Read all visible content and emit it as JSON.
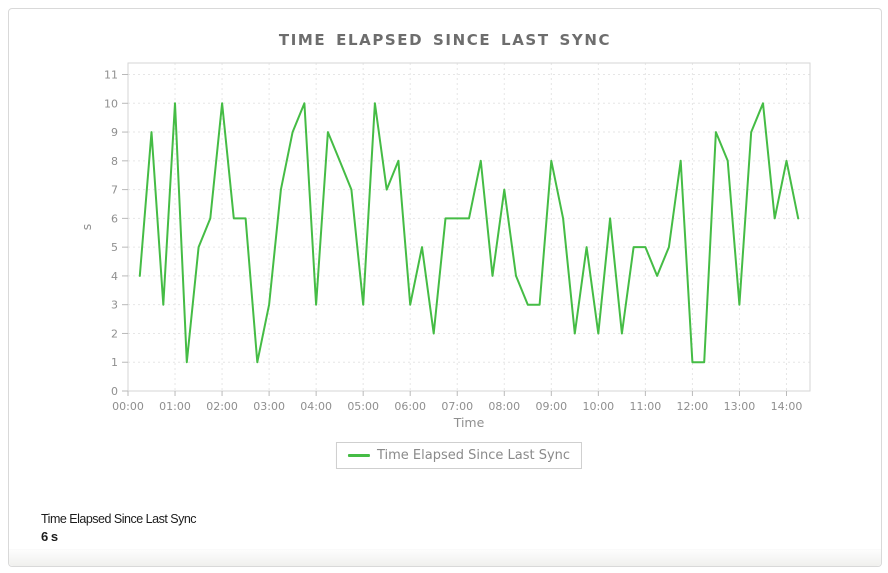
{
  "chart": {
    "title": "TIME ELAPSED SINCE LAST SYNC"
  },
  "chart_data": {
    "type": "line",
    "title": "TIME ELAPSED SINCE LAST SYNC",
    "xlabel": "Time",
    "ylabel": "s",
    "series_name": "Time Elapsed Since Last Sync",
    "line_color": "#45bc45",
    "grid": true,
    "legend_position": "bottom",
    "ylim": [
      0,
      11.4
    ],
    "yticks": [
      0,
      1,
      2,
      3,
      4,
      5,
      6,
      7,
      8,
      9,
      10,
      11
    ],
    "xticks": [
      "00:00",
      "01:00",
      "02:00",
      "03:00",
      "04:00",
      "05:00",
      "06:00",
      "07:00",
      "08:00",
      "09:00",
      "10:00",
      "11:00",
      "12:00",
      "13:00",
      "14:00"
    ],
    "x": [
      "00:15",
      "00:30",
      "00:45",
      "01:00",
      "01:15",
      "01:30",
      "01:45",
      "02:00",
      "02:15",
      "02:30",
      "02:45",
      "03:00",
      "03:15",
      "03:30",
      "03:45",
      "04:00",
      "04:15",
      "04:30",
      "04:45",
      "05:00",
      "05:15",
      "05:30",
      "05:45",
      "06:00",
      "06:15",
      "06:30",
      "06:45",
      "07:00",
      "07:15",
      "07:30",
      "07:45",
      "08:00",
      "08:15",
      "08:30",
      "08:45",
      "09:00",
      "09:15",
      "09:30",
      "09:45",
      "10:00",
      "10:15",
      "10:30",
      "10:45",
      "11:00",
      "11:15",
      "11:30",
      "11:45",
      "12:00",
      "12:15",
      "12:30",
      "12:45",
      "13:00",
      "13:15",
      "13:30",
      "13:45",
      "14:00",
      "14:15"
    ],
    "values": [
      4,
      9,
      3,
      10,
      1,
      5,
      6,
      10,
      6,
      6,
      1,
      3,
      7,
      9,
      10,
      3,
      9,
      8,
      7,
      3,
      10,
      7,
      8,
      3,
      5,
      2,
      6,
      6,
      6,
      8,
      4,
      7,
      4,
      3,
      3,
      8,
      6,
      2,
      5,
      2,
      6,
      2,
      5,
      5,
      4,
      5,
      8,
      1,
      1,
      9,
      8,
      3,
      9,
      10,
      6,
      8,
      6
    ]
  },
  "legend": {
    "label": "Time Elapsed Since Last Sync"
  },
  "footer": {
    "label": "Time Elapsed Since Last Sync",
    "value": "6 s"
  },
  "colors": {
    "line": "#45bc45",
    "grid": "#e6e6e6",
    "axis_border": "#d6d6d6",
    "tick": "#b9b9b9",
    "tick_label": "#8f8f8f",
    "title": "#6d6d6d"
  }
}
